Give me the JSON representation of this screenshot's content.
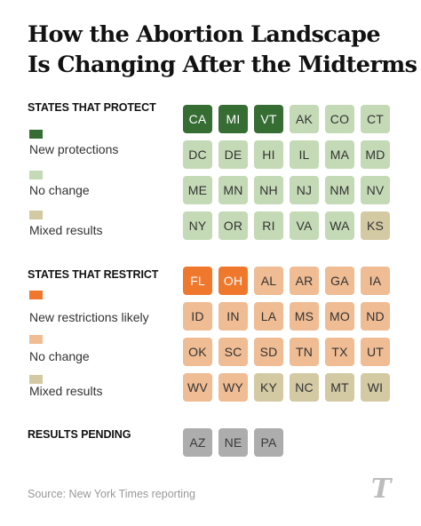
{
  "title_lines": [
    "How the Abortion Landscape",
    "Is Changing After the Midterms"
  ],
  "colors": {
    "new_protections": "#356d33",
    "protect_no_change": "#c4dab6",
    "mixed": "#d3c9a3",
    "new_restrictions": "#f0782c",
    "restrict_no_change": "#efbc94",
    "pending": "#adadad",
    "text_light": "#ffffff",
    "text_dark": "#333333"
  },
  "chart_data": {
    "type": "table",
    "sections": [
      {
        "heading": "STATES THAT PROTECT",
        "legend": [
          {
            "label": "New protections",
            "color_key": "new_protections"
          },
          {
            "label": "No change",
            "color_key": "protect_no_change"
          },
          {
            "label": "Mixed results",
            "color_key": "mixed"
          }
        ],
        "states": [
          {
            "code": "CA",
            "status": "new_protections"
          },
          {
            "code": "MI",
            "status": "new_protections"
          },
          {
            "code": "VT",
            "status": "new_protections"
          },
          {
            "code": "AK",
            "status": "protect_no_change"
          },
          {
            "code": "CO",
            "status": "protect_no_change"
          },
          {
            "code": "CT",
            "status": "protect_no_change"
          },
          {
            "code": "DC",
            "status": "protect_no_change"
          },
          {
            "code": "DE",
            "status": "protect_no_change"
          },
          {
            "code": "HI",
            "status": "protect_no_change"
          },
          {
            "code": "IL",
            "status": "protect_no_change"
          },
          {
            "code": "MA",
            "status": "protect_no_change"
          },
          {
            "code": "MD",
            "status": "protect_no_change"
          },
          {
            "code": "ME",
            "status": "protect_no_change"
          },
          {
            "code": "MN",
            "status": "protect_no_change"
          },
          {
            "code": "NH",
            "status": "protect_no_change"
          },
          {
            "code": "NJ",
            "status": "protect_no_change"
          },
          {
            "code": "NM",
            "status": "protect_no_change"
          },
          {
            "code": "NV",
            "status": "protect_no_change"
          },
          {
            "code": "NY",
            "status": "protect_no_change"
          },
          {
            "code": "OR",
            "status": "protect_no_change"
          },
          {
            "code": "RI",
            "status": "protect_no_change"
          },
          {
            "code": "VA",
            "status": "protect_no_change"
          },
          {
            "code": "WA",
            "status": "protect_no_change"
          },
          {
            "code": "KS",
            "status": "mixed"
          }
        ]
      },
      {
        "heading": "STATES THAT RESTRICT",
        "legend": [
          {
            "label": "New restrictions likely",
            "color_key": "new_restrictions"
          },
          {
            "label": "No change",
            "color_key": "restrict_no_change"
          },
          {
            "label": "Mixed results",
            "color_key": "mixed"
          }
        ],
        "states": [
          {
            "code": "FL",
            "status": "new_restrictions"
          },
          {
            "code": "OH",
            "status": "new_restrictions"
          },
          {
            "code": "AL",
            "status": "restrict_no_change"
          },
          {
            "code": "AR",
            "status": "restrict_no_change"
          },
          {
            "code": "GA",
            "status": "restrict_no_change"
          },
          {
            "code": "IA",
            "status": "restrict_no_change"
          },
          {
            "code": "ID",
            "status": "restrict_no_change"
          },
          {
            "code": "IN",
            "status": "restrict_no_change"
          },
          {
            "code": "LA",
            "status": "restrict_no_change"
          },
          {
            "code": "MS",
            "status": "restrict_no_change"
          },
          {
            "code": "MO",
            "status": "restrict_no_change"
          },
          {
            "code": "ND",
            "status": "restrict_no_change"
          },
          {
            "code": "OK",
            "status": "restrict_no_change"
          },
          {
            "code": "SC",
            "status": "restrict_no_change"
          },
          {
            "code": "SD",
            "status": "restrict_no_change"
          },
          {
            "code": "TN",
            "status": "restrict_no_change"
          },
          {
            "code": "TX",
            "status": "restrict_no_change"
          },
          {
            "code": "UT",
            "status": "restrict_no_change"
          },
          {
            "code": "WV",
            "status": "restrict_no_change"
          },
          {
            "code": "WY",
            "status": "restrict_no_change"
          },
          {
            "code": "KY",
            "status": "mixed"
          },
          {
            "code": "NC",
            "status": "mixed"
          },
          {
            "code": "MT",
            "status": "mixed"
          },
          {
            "code": "WI",
            "status": "mixed"
          }
        ]
      },
      {
        "heading": "RESULTS PENDING",
        "legend": [],
        "states": [
          {
            "code": "AZ",
            "status": "pending"
          },
          {
            "code": "NE",
            "status": "pending"
          },
          {
            "code": "PA",
            "status": "pending"
          }
        ]
      }
    ]
  },
  "source": "Source: New York Times reporting",
  "logo_glyph": "T"
}
